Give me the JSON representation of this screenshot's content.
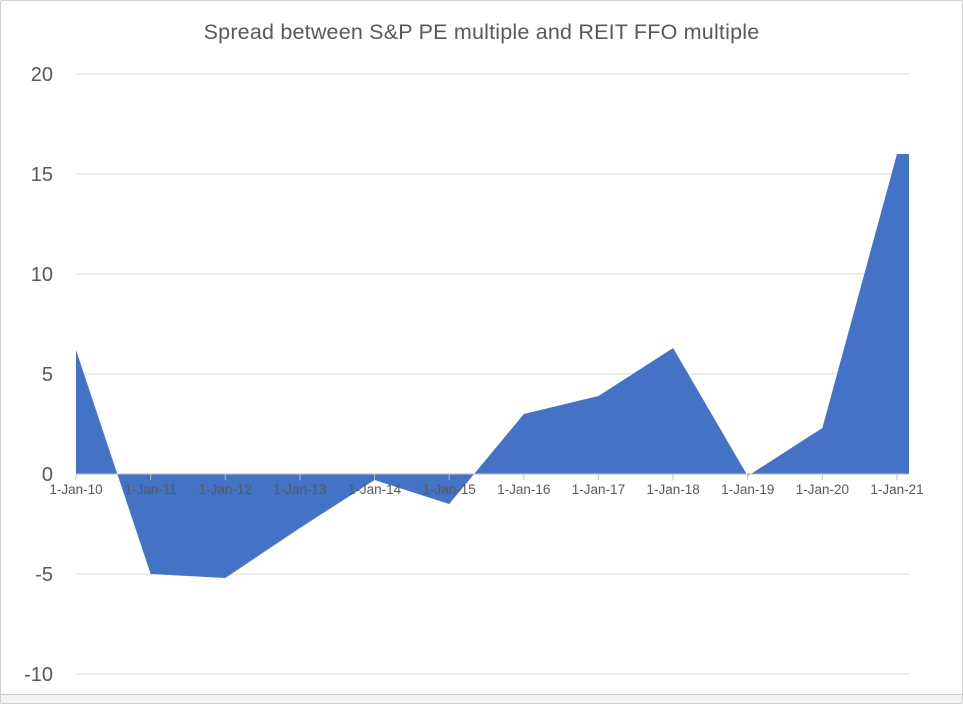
{
  "chart_data": {
    "type": "area",
    "title": "Spread between S&P PE multiple and REIT FFO multiple",
    "categories": [
      "1-Jan-10",
      "1-Jan-11",
      "1-Jan-12",
      "1-Jan-13",
      "1-Jan-14",
      "1-Jan-15",
      "1-Jan-16",
      "1-Jan-17",
      "1-Jan-18",
      "1-Jan-19",
      "1-Jan-20",
      "1-Jan-21"
    ],
    "values": [
      6.2,
      -5.0,
      -5.2,
      -2.7,
      -0.3,
      -1.5,
      3.0,
      3.9,
      6.3,
      -0.1,
      2.3,
      16.0
    ],
    "xlabel": "",
    "ylabel": "",
    "ylim": [
      -10,
      20
    ],
    "yticks": [
      20,
      15,
      10,
      5,
      0,
      -5,
      -10
    ],
    "grid": true,
    "legend": "none",
    "baseline": 0,
    "area_color": "#4472C4",
    "gridline_color": "#D9D9D9",
    "axis_color": "#BFBFBF",
    "text_color": "#595959"
  }
}
